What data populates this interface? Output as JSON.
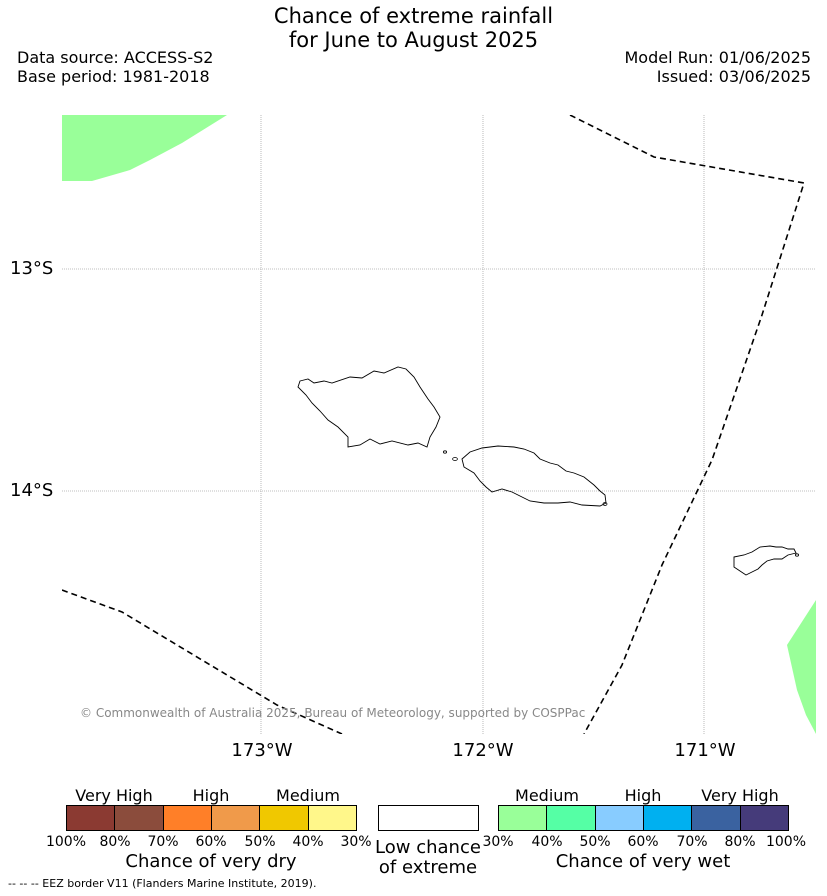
{
  "title": {
    "line1": "Chance of extreme rainfall",
    "line2": "for June to August 2025"
  },
  "meta": {
    "data_source": "Data source: ACCESS-S2",
    "base_period": "Base period: 1981-2018",
    "model_run": "Model Run: 01/06/2025",
    "issued": "Issued: 03/06/2025"
  },
  "map": {
    "lat_labels": [
      "13°S",
      "14°S"
    ],
    "lon_labels": [
      "173°W",
      "172°W",
      "171°W"
    ],
    "copyright": "© Commonwealth of Australia 2025, Bureau of Meteorology, supported by COSPPac",
    "colors": {
      "medium_wet": "#99ff99",
      "eez_line": "#000000",
      "coastline": "#000000",
      "gridline": "#aaaaaa"
    }
  },
  "legend_dry": {
    "headers": [
      "Very High",
      "High",
      "Medium"
    ],
    "ticks": [
      "100%",
      "80%",
      "70%",
      "60%",
      "50%",
      "40%",
      "30%"
    ],
    "title": "Chance of very dry",
    "colors": [
      "#8b3a32",
      "#8b4c3c",
      "#ff7f28",
      "#f09a4a",
      "#f0c800",
      "#fff78a"
    ]
  },
  "legend_low": {
    "line1": "Low chance",
    "line2": "of extreme"
  },
  "legend_wet": {
    "headers": [
      "Medium",
      "High",
      "Very High"
    ],
    "ticks": [
      "30%",
      "40%",
      "50%",
      "60%",
      "70%",
      "80%",
      "100%"
    ],
    "title": "Chance of very wet",
    "colors": [
      "#99ff99",
      "#55ffa5",
      "#88ccff",
      "#00b0f0",
      "#3a62a0",
      "#453b7a"
    ]
  },
  "footnote": "-- -- -- EEZ border V11 (Flanders Marine Institute, 2019)."
}
